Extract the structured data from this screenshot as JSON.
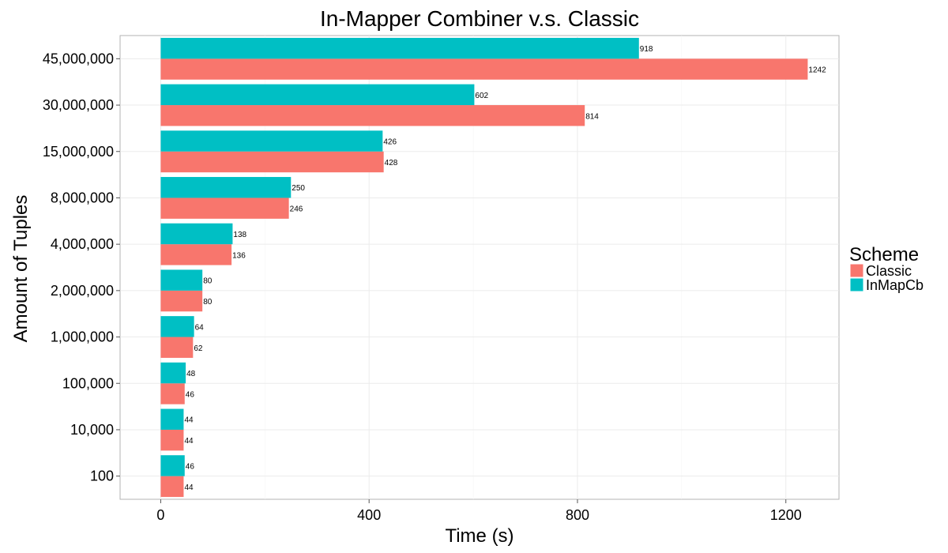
{
  "chart_data": {
    "type": "bar",
    "orientation": "horizontal",
    "title": "In-Mapper Combiner v.s. Classic",
    "xlabel": "Time (s)",
    "ylabel": "Amount of Tuples",
    "xlim": [
      -78,
      1302
    ],
    "xticks": [
      0,
      400,
      800,
      1200
    ],
    "xtick_labels": [
      "0",
      "400",
      "800",
      "1200"
    ],
    "categories": [
      "100",
      "10,000",
      "100,000",
      "1,000,000",
      "2,000,000",
      "4,000,000",
      "8,000,000",
      "15,000,000",
      "30,000,000",
      "45,000,000"
    ],
    "series": [
      {
        "name": "Classic",
        "color": "#F8766D",
        "values": [
          44,
          44,
          46,
          62,
          80,
          136,
          246,
          428,
          814,
          1242
        ]
      },
      {
        "name": "InMapCb",
        "color": "#00BFC4",
        "values": [
          46,
          44,
          48,
          64,
          80,
          138,
          250,
          426,
          602,
          918
        ]
      }
    ],
    "legend": {
      "title": "Scheme",
      "position": "right"
    },
    "grid": true
  }
}
